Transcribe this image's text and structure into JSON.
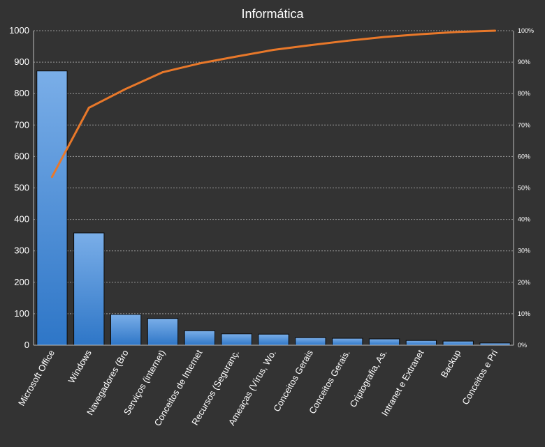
{
  "chart_data": {
    "type": "bar",
    "title": "Informática",
    "categories": [
      "Microsoft Office",
      "Windows",
      "Navegadores (Bro",
      "Serviços (internet)",
      "Conceitos de Internet",
      "Recursos (Seguranç.",
      "Ameaças (Vírus, Wo.",
      "Conceitos Gerais",
      "Conceitos Gerais.",
      "Criptografia, As.",
      "Intranet e Extranet",
      "Backup",
      "Conceitos e Pri"
    ],
    "series": [
      {
        "type": "bar",
        "axis": "left",
        "values": [
          872,
          357,
          98,
          85,
          46,
          36,
          35,
          24,
          22,
          20,
          15,
          13,
          7
        ]
      },
      {
        "type": "line",
        "axis": "right",
        "values": [
          53.5,
          75.5,
          81.5,
          86.8,
          89.6,
          91.8,
          93.9,
          95.4,
          96.8,
          98.0,
          98.9,
          99.6,
          100.0
        ]
      }
    ],
    "y_left": {
      "min": 0,
      "max": 1000,
      "ticks": [
        0,
        100,
        200,
        300,
        400,
        500,
        600,
        700,
        800,
        900,
        1000
      ]
    },
    "y_right": {
      "min": 0,
      "max": 100,
      "unit": "%",
      "ticks": [
        "0%",
        "10%",
        "20%",
        "30%",
        "40%",
        "50%",
        "60%",
        "70%",
        "80%",
        "90%",
        "100%"
      ]
    },
    "grid": true,
    "legend": "none",
    "colors": {
      "background": "#333333",
      "bar_top": "#7aaee8",
      "bar_bottom": "#2e76c7",
      "bar_stroke": "#0b0b0b",
      "line": "#e8782a",
      "text": "#ffffff"
    }
  }
}
